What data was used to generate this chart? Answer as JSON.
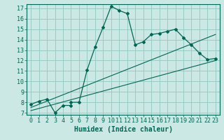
{
  "xlabel": "Humidex (Indice chaleur)",
  "background_color": "#cce8e4",
  "grid_color": "#99ccc6",
  "line_color": "#006655",
  "xlim": [
    -0.5,
    23.5
  ],
  "ylim": [
    6.8,
    17.4
  ],
  "xticks": [
    0,
    1,
    2,
    3,
    4,
    5,
    6,
    7,
    8,
    9,
    10,
    11,
    12,
    13,
    14,
    15,
    16,
    17,
    18,
    19,
    20,
    21,
    22,
    23
  ],
  "yticks": [
    7,
    8,
    9,
    10,
    11,
    12,
    13,
    14,
    15,
    16,
    17
  ],
  "curve1_x": [
    0,
    1,
    2,
    3,
    4,
    5,
    5,
    6,
    7,
    8,
    9,
    10,
    11,
    12,
    13,
    14,
    15,
    16,
    17,
    18,
    19,
    20,
    21,
    22,
    23
  ],
  "curve1_y": [
    7.8,
    8.1,
    8.3,
    7.0,
    7.7,
    7.7,
    8.0,
    8.0,
    11.1,
    13.3,
    15.2,
    17.2,
    16.8,
    16.5,
    13.5,
    13.8,
    14.5,
    14.6,
    14.8,
    15.0,
    14.2,
    13.5,
    12.7,
    12.1,
    12.2
  ],
  "line2_x": [
    0,
    23
  ],
  "line2_y": [
    7.5,
    14.5
  ],
  "line3_x": [
    0,
    23
  ],
  "line3_y": [
    7.2,
    12.0
  ],
  "fontsize_axis": 7,
  "fontsize_ticks": 6
}
